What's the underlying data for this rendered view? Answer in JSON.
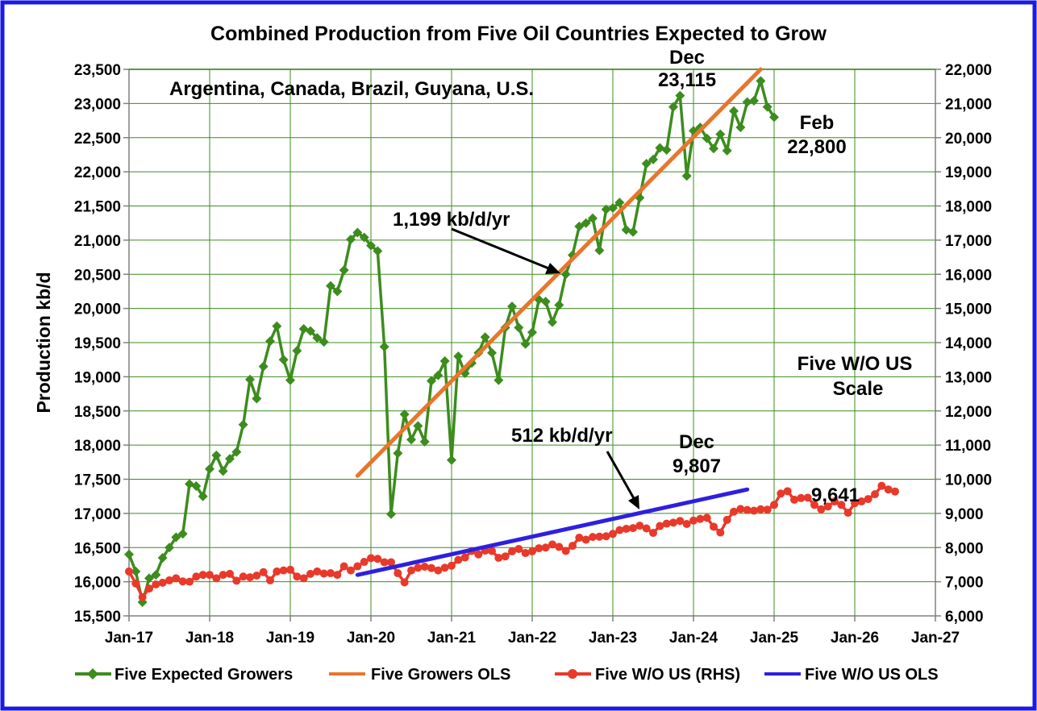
{
  "chart_data": {
    "type": "line",
    "title": "Combined Production from Five Oil Countries Expected to Grow",
    "ylabel": "Production kb/d",
    "y_left": {
      "min": 15500,
      "max": 23500,
      "step": 500,
      "tick_labels": [
        "15,500",
        "16,000",
        "16,500",
        "17,000",
        "17,500",
        "18,000",
        "18,500",
        "19,000",
        "19,500",
        "20,000",
        "20,500",
        "21,000",
        "21,500",
        "22,000",
        "22,500",
        "23,000",
        "23,500"
      ]
    },
    "y_right": {
      "min": 6000,
      "max": 22000,
      "step": 1000,
      "tick_labels": [
        "6,000",
        "7,000",
        "8,000",
        "9,000",
        "10,000",
        "11,000",
        "12,000",
        "13,000",
        "14,000",
        "15,000",
        "16,000",
        "17,000",
        "18,000",
        "19,000",
        "20,000",
        "21,000",
        "22,000"
      ]
    },
    "x_axis": {
      "start": "2017-01",
      "end": "2027-01",
      "tick_labels": [
        "Jan-17",
        "Jan-18",
        "Jan-19",
        "Jan-20",
        "Jan-21",
        "Jan-22",
        "Jan-23",
        "Jan-24",
        "Jan-25",
        "Jan-26",
        "Jan-27"
      ]
    },
    "grid": true,
    "legend_position": "bottom",
    "series": [
      {
        "name": "Five Expected Growers",
        "axis": "left",
        "color": "#3C8C1E",
        "marker": "diamond",
        "start": "2017-01",
        "values": [
          16400,
          16150,
          15700,
          16050,
          16100,
          16350,
          16500,
          16650,
          16700,
          17430,
          17400,
          17250,
          17650,
          17850,
          17620,
          17800,
          17900,
          18300,
          18960,
          18680,
          19150,
          19520,
          19740,
          19250,
          18950,
          19380,
          19700,
          19670,
          19570,
          19510,
          20330,
          20250,
          20560,
          21010,
          21110,
          21040,
          20920,
          20840,
          19440,
          16990,
          17880,
          18450,
          18080,
          18280,
          18050,
          18940,
          19020,
          19230,
          17780,
          19300,
          19050,
          19200,
          19350,
          19580,
          19350,
          18950,
          19720,
          20030,
          19720,
          19480,
          19650,
          20130,
          20100,
          19800,
          20050,
          20500,
          20780,
          21200,
          21250,
          21320,
          20850,
          21450,
          21470,
          21550,
          21150,
          21120,
          21620,
          22120,
          22180,
          22350,
          22320,
          22950,
          23115,
          21940,
          22600,
          22650,
          22490,
          22340,
          22550,
          22310,
          22890,
          22650,
          23020,
          23040,
          23330,
          22950,
          22800
        ]
      },
      {
        "name": "Five Growers OLS",
        "axis": "left",
        "color": "#E8762C",
        "linear": true,
        "from": {
          "x": "2019-11",
          "y": 17550
        },
        "to": {
          "x": "2024-11",
          "y": 23500
        }
      },
      {
        "name": "Five W/O US (RHS)",
        "axis": "right",
        "color": "#E8392A",
        "marker": "circle",
        "start": "2017-01",
        "values": [
          7300,
          6950,
          6550,
          6800,
          6920,
          6970,
          7040,
          7100,
          7010,
          7000,
          7150,
          7200,
          7200,
          7100,
          7200,
          7230,
          7030,
          7150,
          7130,
          7180,
          7280,
          7040,
          7300,
          7330,
          7350,
          7150,
          7100,
          7230,
          7300,
          7240,
          7250,
          7200,
          7450,
          7330,
          7450,
          7580,
          7690,
          7670,
          7570,
          7570,
          7250,
          6980,
          7330,
          7410,
          7440,
          7400,
          7330,
          7410,
          7470,
          7640,
          7710,
          7900,
          7800,
          7910,
          7900,
          7700,
          7740,
          7890,
          7960,
          7840,
          7890,
          7980,
          8000,
          8090,
          8020,
          7900,
          8050,
          8290,
          8230,
          8310,
          8320,
          8330,
          8400,
          8510,
          8550,
          8570,
          8640,
          8560,
          8430,
          8630,
          8700,
          8730,
          8780,
          8690,
          8790,
          8840,
          8870,
          8610,
          8440,
          8810,
          9050,
          9130,
          9100,
          9080,
          9120,
          9110,
          9250,
          9580,
          9650,
          9400,
          9450,
          9460,
          9250,
          9120,
          9200,
          9350,
          9250,
          9020,
          9300,
          9350,
          9420,
          9560,
          9807,
          9700,
          9641
        ]
      },
      {
        "name": "Five W/O US OLS",
        "axis": "right",
        "color": "#2E1FE0",
        "linear": true,
        "from": {
          "x": "2019-11",
          "y": 7200
        },
        "to": {
          "x": "2024-09",
          "y": 9700
        }
      }
    ],
    "annotations": [
      {
        "id": "countries",
        "text": "Argentina, Canada, Brazil, Guyana, U.S."
      },
      {
        "id": "dec-label",
        "text": "Dec"
      },
      {
        "id": "dec-value",
        "text": "23,115"
      },
      {
        "id": "feb-label",
        "text": "Feb"
      },
      {
        "id": "feb-value",
        "text": "22,800"
      },
      {
        "id": "ols-rate-top",
        "text": "1,199 kb/d/yr"
      },
      {
        "id": "ols-rate-bottom",
        "text": "512 kb/d/yr"
      },
      {
        "id": "scale-line1",
        "text": "Five W/O US"
      },
      {
        "id": "scale-line2",
        "text": "Scale"
      },
      {
        "id": "dec-label-2",
        "text": "Dec"
      },
      {
        "id": "dec-value-2",
        "text": "9,807"
      },
      {
        "id": "last-value-2",
        "text": "9,641"
      }
    ]
  }
}
